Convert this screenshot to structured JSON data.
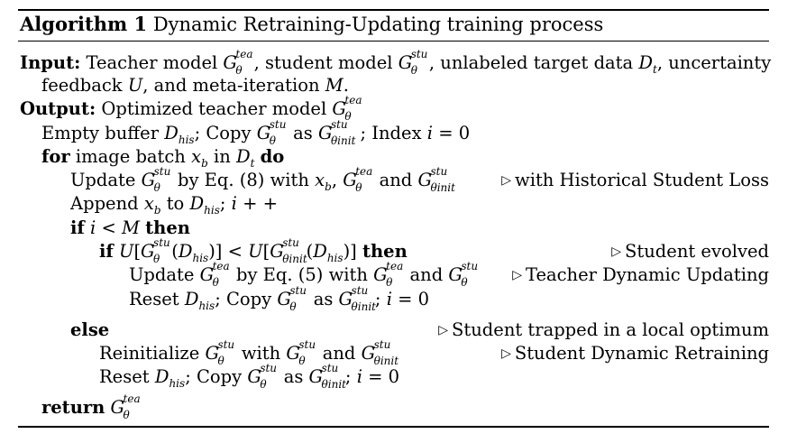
{
  "header": {
    "label": "Algorithm 1",
    "title": "Dynamic Retraining-Updating training process"
  },
  "lines": [
    {
      "id": "input1",
      "kw": "Input:",
      "text": "Teacher model G_θ^tea, student model G_θ^stu, unlabeled target data D_t, uncertainty"
    },
    {
      "id": "input2",
      "text": "feedback U, and meta-iteration M."
    },
    {
      "id": "output",
      "kw": "Output:",
      "text": "Optimized teacher model G_θ^tea"
    },
    {
      "id": "l1",
      "text": "Empty buffer D_his; Copy G_θ^stu as G_θinit^stu; Index i = 0"
    },
    {
      "id": "l2",
      "kw": "for",
      "text": "image batch x_b in D_t",
      "kw2": "do"
    },
    {
      "id": "l3",
      "text": "Update G_θ^stu by Eq. (8) with x_b, G_θ^tea and G_θinit^stu",
      "comment": "with Historical Student Loss"
    },
    {
      "id": "l4",
      "text": "Append x_b to D_his; i + +"
    },
    {
      "id": "l5",
      "kw": "if",
      "text": "i < M",
      "kw2": "then"
    },
    {
      "id": "l6",
      "kw": "if",
      "text": "U[G_θ^stu(D_his)] < U[G_θinit^stu(D_his)]",
      "kw2": "then",
      "comment": "Student evolved"
    },
    {
      "id": "l7",
      "text": "Update G_θ^tea by Eq. (5) with G_θ^tea and G_θ^stu",
      "comment": "Teacher Dynamic Updating"
    },
    {
      "id": "l8",
      "text": "Reset D_his; Copy G_θ^stu as G_θinit^stu; i = 0"
    },
    {
      "id": "l9",
      "kw": "else",
      "comment": "Student trapped in a local optimum"
    },
    {
      "id": "l10",
      "text": "Reinitialize G_θ^stu with G_θ^stu and G_θinit^stu",
      "comment": "Student Dynamic Retraining"
    },
    {
      "id": "l11",
      "text": "Reset D_his; Copy G_θ^stu as G_θinit^stu; i = 0"
    },
    {
      "id": "l12",
      "kw": "return",
      "text": "G_θ^tea"
    }
  ]
}
